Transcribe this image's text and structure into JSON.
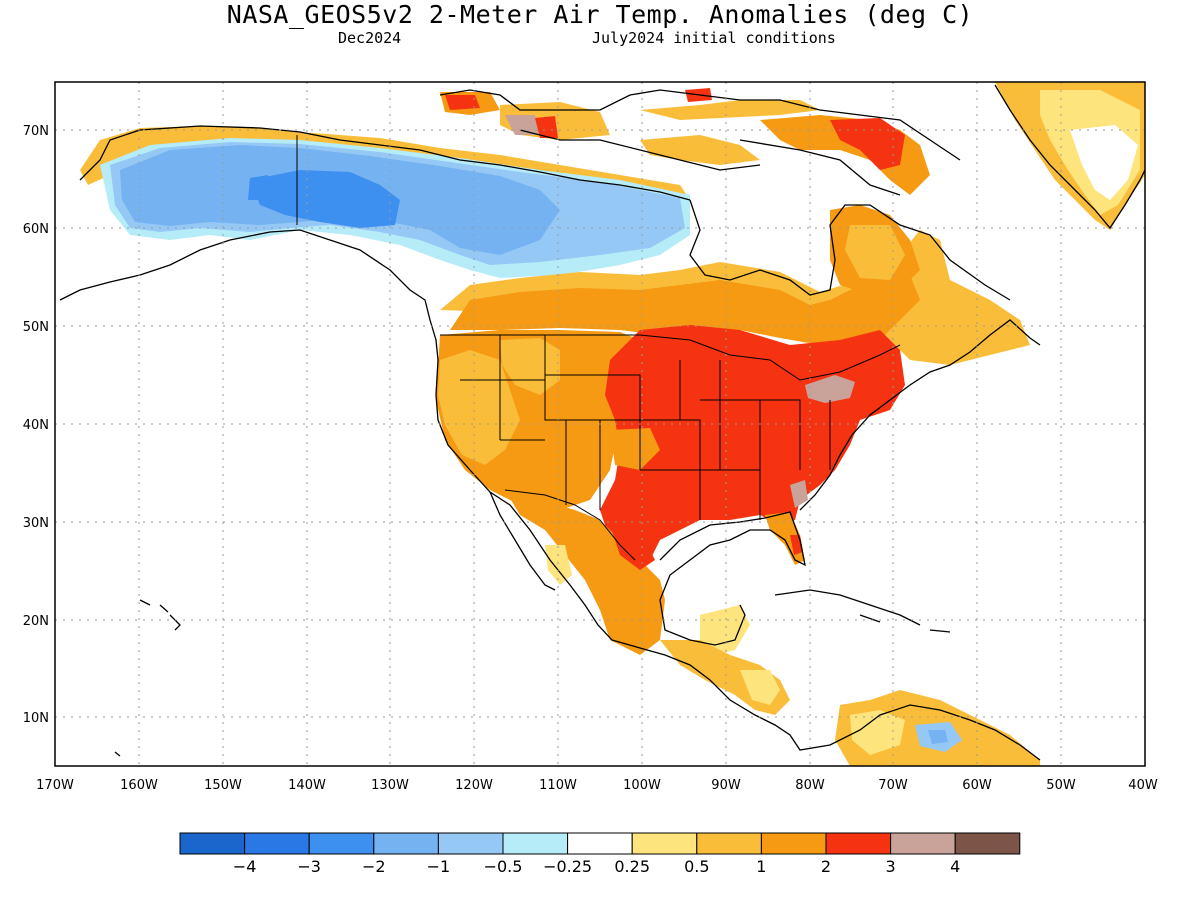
{
  "header": {
    "title": "NASA_GEOS5v2 2-Meter Air Temp. Anomalies (deg C)",
    "valid_month": "Dec2024",
    "init_conditions": "July2024 initial conditions"
  },
  "map": {
    "region": "North America",
    "lon_range": [
      -170,
      -40
    ],
    "lat_range": [
      5,
      75
    ],
    "lon_labels": [
      "170W",
      "160W",
      "150W",
      "140W",
      "130W",
      "120W",
      "110W",
      "100W",
      "90W",
      "80W",
      "70W",
      "60W",
      "50W",
      "40W"
    ],
    "lat_labels": [
      "10N",
      "20N",
      "30N",
      "40N",
      "50N",
      "60N",
      "70N"
    ],
    "grid": "dotted"
  },
  "colorbar": {
    "labels": [
      "-4",
      "-3",
      "-2",
      "-1",
      "-0.5",
      "-0.25",
      "0.25",
      "0.5",
      "1",
      "2",
      "3",
      "4"
    ],
    "colors": [
      "#1a66cc",
      "#2a78e6",
      "#3d8ff0",
      "#74b2f2",
      "#96c8f5",
      "#b6ecf8",
      "#ffffff",
      "#fde47c",
      "#f9bd3a",
      "#f59a12",
      "#f53311",
      "#c9a39a",
      "#7d5448"
    ]
  },
  "anomaly_regions": [
    {
      "name": "Alaska & Yukon",
      "category": "-2"
    },
    {
      "name": "Northern Canada coast",
      "category": "1"
    },
    {
      "name": "Western United States",
      "category": "1"
    },
    {
      "name": "Central & Eastern United States",
      "category": "2"
    },
    {
      "name": "Great Lakes & Northeast",
      "category": "3"
    },
    {
      "name": "Mexico",
      "category": "1"
    },
    {
      "name": "Central America",
      "category": "0.5"
    },
    {
      "name": "Greenland",
      "category": "0.5"
    }
  ]
}
